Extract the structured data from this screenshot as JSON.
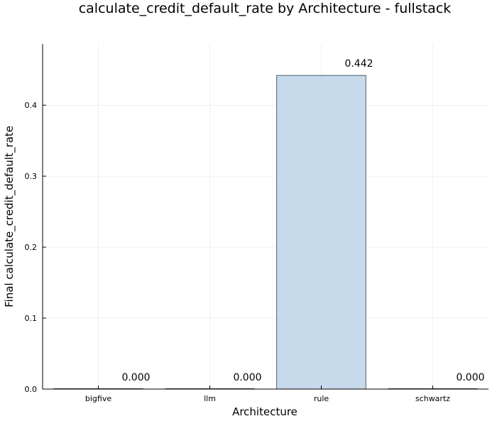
{
  "chart_data": {
    "type": "bar",
    "title": "calculate_credit_default_rate by Architecture - fullstack",
    "xlabel": "Architecture",
    "ylabel": "Final calculate_credit_default_rate",
    "categories": [
      "bigfive",
      "llm",
      "rule",
      "schwartz"
    ],
    "values": [
      0.0,
      0.0,
      0.442,
      0.0
    ],
    "data_labels": [
      "0.000",
      "0.000",
      "0.442",
      "0.000"
    ],
    "yticks": [
      0.0,
      0.1,
      0.2,
      0.3,
      0.4
    ],
    "ytick_labels": [
      "0.0",
      "0.1",
      "0.2",
      "0.3",
      "0.4"
    ],
    "ylim": [
      0,
      0.4862
    ],
    "grid": true,
    "legend": "none",
    "bar_fill": "#c6daeb",
    "bar_stroke": "#2a3a48"
  }
}
